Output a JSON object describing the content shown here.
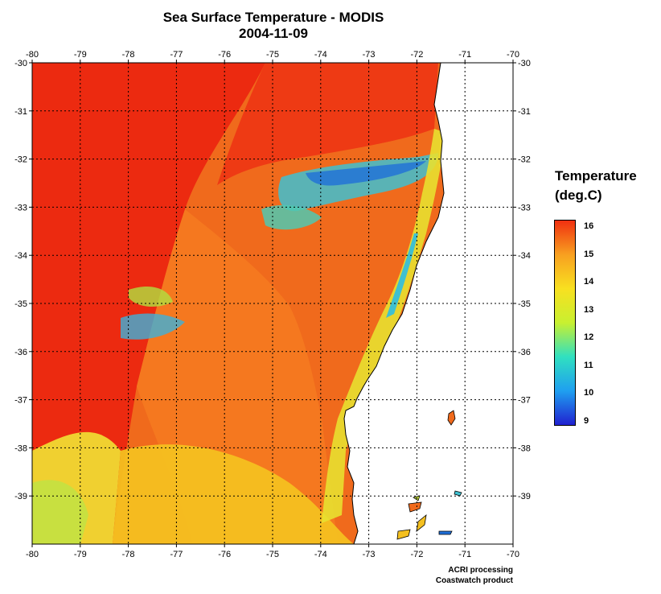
{
  "header": {
    "title": "Sea Surface Temperature - MODIS",
    "date": "2004-11-09"
  },
  "map": {
    "lon_ticks": [
      "-80",
      "-79",
      "-78",
      "-77",
      "-76",
      "-75",
      "-74",
      "-73",
      "-72",
      "-71",
      "-70"
    ],
    "lat_ticks": [
      "-30",
      "-31",
      "-32",
      "-33",
      "-34",
      "-35",
      "-36",
      "-37",
      "-38",
      "-39"
    ],
    "lon_range": [
      -80,
      -70
    ],
    "lat_range": [
      -40,
      -30
    ],
    "grid": "dotted",
    "land_color": "#ffffff",
    "coastline_color": "#000000"
  },
  "legend": {
    "title_line1": "Temperature",
    "title_line2": "(deg.C)",
    "labels": [
      "16",
      "15",
      "14",
      "13",
      "12",
      "11",
      "10",
      "9"
    ],
    "range": [
      9,
      16
    ],
    "colors": [
      "#2020d0",
      "#1f9ff0",
      "#30e0c0",
      "#c8f030",
      "#f8e020",
      "#f8a020",
      "#f03010"
    ]
  },
  "footer": {
    "line1": "ACRI processing",
    "line2": "Coastwatch product"
  }
}
